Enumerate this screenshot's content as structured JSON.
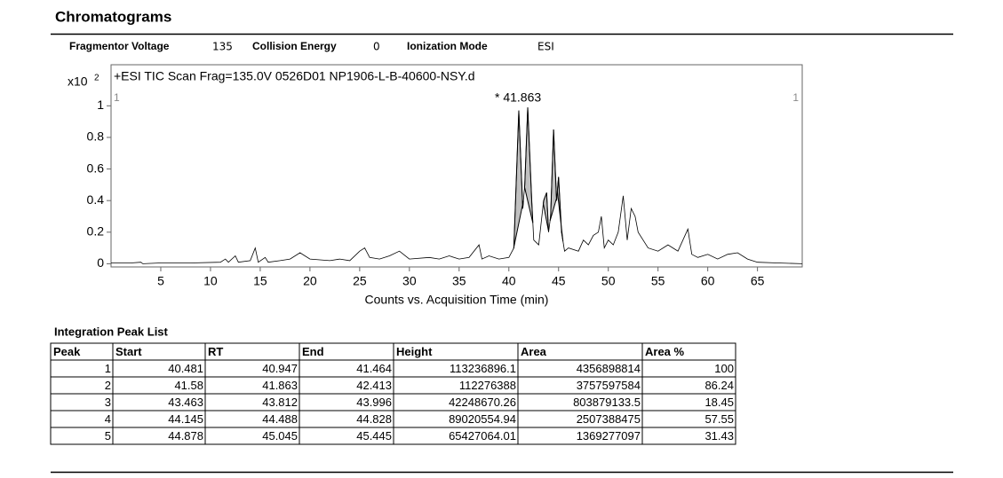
{
  "header": {
    "title": "Chromatograms",
    "params": [
      {
        "label": "Fragmentor Voltage",
        "value": "135"
      },
      {
        "label": "Collision Energy",
        "value": "0"
      },
      {
        "label": "Ionization Mode",
        "value": "ESI"
      }
    ]
  },
  "chart_data": {
    "type": "line",
    "title": "+ESI TIC Scan Frag=135.0V 0526D01 NP1906-L-B-40600-NSY.d",
    "annotation": "* 41.863",
    "y_scale_prefix": "x10",
    "y_scale_exponent": "2",
    "markers": [
      "1",
      "1"
    ],
    "x_label": "Counts vs. Acquisition Time (min)",
    "color": "#000000",
    "fill": "#c0c0c0",
    "x": [
      0,
      2,
      3,
      3.2,
      5,
      8,
      11,
      11.5,
      11.8,
      12.5,
      12.8,
      14,
      14.5,
      14.8,
      15.5,
      15.8,
      17,
      18,
      19,
      20,
      22,
      23,
      24,
      25,
      25.5,
      26,
      27,
      28,
      29,
      30,
      32,
      33,
      34,
      35,
      36,
      37,
      37.3,
      38,
      39,
      40,
      40.5,
      41.0,
      41.4,
      41.6,
      41.9,
      42.3,
      42.5,
      43,
      43.5,
      43.8,
      44.0,
      44.2,
      44.5,
      44.8,
      45.0,
      45.3,
      45.6,
      46,
      47,
      47.5,
      48,
      48.5,
      49,
      49.3,
      49.6,
      50,
      50.5,
      51,
      51.5,
      51.9,
      52.3,
      52.7,
      53,
      53.5,
      54,
      55,
      56,
      57,
      58,
      58.4,
      59,
      60,
      61,
      62,
      63,
      64,
      65,
      67,
      69.5
    ],
    "values": [
      0.005,
      0.005,
      0.01,
      0.0,
      0.005,
      0.005,
      0.01,
      0.03,
      0.01,
      0.05,
      0.01,
      0.02,
      0.1,
      0.01,
      0.04,
      0.01,
      0.02,
      0.03,
      0.07,
      0.03,
      0.02,
      0.03,
      0.02,
      0.08,
      0.1,
      0.04,
      0.03,
      0.05,
      0.08,
      0.03,
      0.04,
      0.03,
      0.05,
      0.03,
      0.04,
      0.12,
      0.03,
      0.05,
      0.03,
      0.04,
      0.1,
      0.97,
      0.35,
      0.5,
      0.99,
      0.4,
      0.15,
      0.12,
      0.4,
      0.45,
      0.2,
      0.3,
      0.85,
      0.4,
      0.55,
      0.2,
      0.08,
      0.1,
      0.08,
      0.15,
      0.12,
      0.18,
      0.2,
      0.3,
      0.1,
      0.15,
      0.12,
      0.2,
      0.43,
      0.15,
      0.35,
      0.3,
      0.2,
      0.15,
      0.1,
      0.08,
      0.12,
      0.08,
      0.22,
      0.06,
      0.04,
      0.06,
      0.03,
      0.06,
      0.07,
      0.03,
      0.01,
      0.005,
      0.0
    ],
    "xlim": [
      0,
      69.5
    ],
    "ylim": [
      -0.02,
      1.26
    ],
    "xticks": [
      5,
      10,
      15,
      20,
      25,
      30,
      35,
      40,
      45,
      50,
      55,
      60,
      65
    ],
    "yticks": [
      0,
      0.2,
      0.4,
      0.6,
      0.8,
      1
    ]
  },
  "table": {
    "title": "Integration Peak List",
    "columns": [
      "Peak",
      "Start",
      "RT",
      "End",
      "Height",
      "Area",
      "Area %"
    ],
    "rows": [
      [
        1,
        40.481,
        40.947,
        41.464,
        113236896.1,
        4356898814,
        100
      ],
      [
        2,
        41.58,
        41.863,
        42.413,
        112276388,
        3757597584,
        86.24
      ],
      [
        3,
        43.463,
        43.812,
        43.996,
        42248670.26,
        803879133.5,
        18.45
      ],
      [
        4,
        44.145,
        44.488,
        44.828,
        89020554.94,
        2507388475,
        57.55
      ],
      [
        5,
        44.878,
        45.045,
        45.445,
        65427064.01,
        1369277097,
        31.43
      ]
    ]
  }
}
